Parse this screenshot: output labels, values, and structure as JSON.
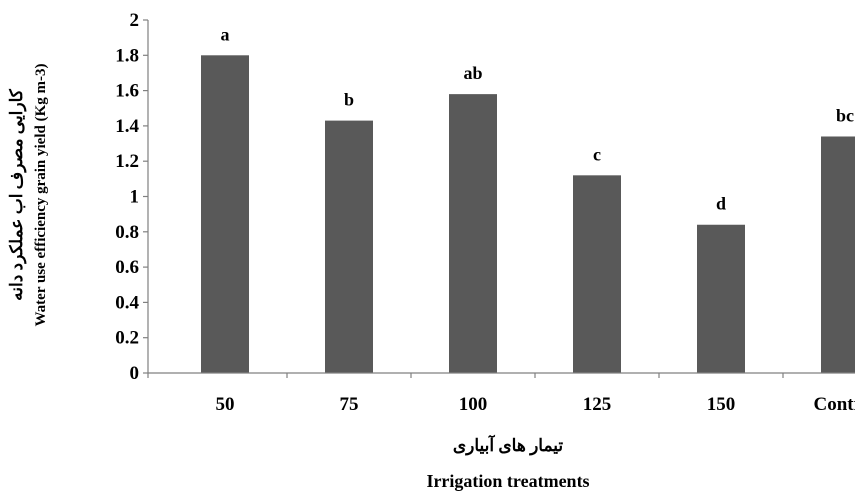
{
  "chart_data": {
    "type": "bar",
    "categories": [
      "50",
      "75",
      "100",
      "125",
      "150",
      "Control"
    ],
    "values": [
      1.8,
      1.43,
      1.58,
      1.12,
      0.84,
      1.34
    ],
    "significance_labels": [
      "a",
      "b",
      "ab",
      "c",
      "d",
      "bc"
    ],
    "title": "",
    "xlabel": "Irrigation treatments",
    "xlabel_fa": "تیمار های آبیاری",
    "ylabel": "Water use efficiency grain yield (Kg m-3)",
    "ylabel_fa": "کارایی مصرف اب عملکرد دانه",
    "ylim": [
      0,
      2
    ],
    "yticks": [
      "0",
      "0.2",
      "0.4",
      "0.6",
      "0.8",
      "1",
      "1.2",
      "1.4",
      "1.6",
      "1.8",
      "2"
    ],
    "grid": false,
    "legend": "none",
    "bar_color": "#595959"
  }
}
